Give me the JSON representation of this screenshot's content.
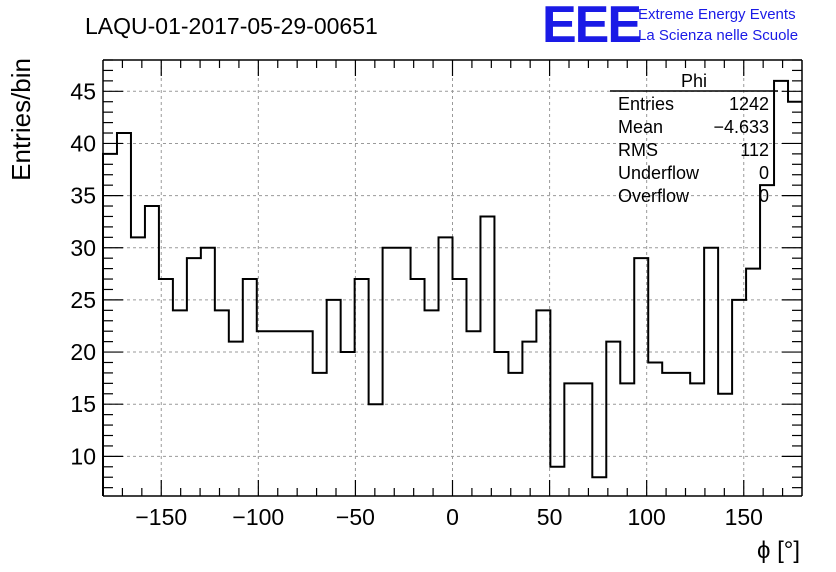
{
  "chart_data": {
    "type": "histogram",
    "title": "LAQU-01-2017-05-29-00651",
    "xlabel": "ϕ [°]",
    "ylabel": "Entries/bin",
    "xlim": [
      -180,
      180
    ],
    "ylim": [
      6.2,
      48
    ],
    "grid": true,
    "x_ticks": [
      -150,
      -100,
      -50,
      0,
      50,
      100,
      150
    ],
    "x_tick_labels": [
      "−150",
      "−100",
      "−50",
      "0",
      "50",
      "100",
      "150"
    ],
    "y_ticks": [
      10,
      15,
      20,
      25,
      30,
      35,
      40,
      45
    ],
    "y_tick_labels": [
      "10",
      "15",
      "20",
      "25",
      "30",
      "35",
      "40",
      "45"
    ],
    "bin_edges_start": -180,
    "bin_width": 7.2,
    "counts": [
      39,
      41,
      31,
      34,
      27,
      24,
      29,
      30,
      24,
      21,
      27,
      22,
      22,
      22,
      22,
      18,
      25,
      20,
      27,
      15,
      30,
      30,
      27,
      24,
      31,
      27,
      22,
      33,
      20,
      18,
      21,
      24,
      9,
      17,
      17,
      8,
      21,
      17,
      29,
      19,
      18,
      18,
      17,
      30,
      16,
      25,
      28,
      36,
      46,
      44
    ]
  },
  "stats_box": {
    "name": "Phi",
    "rows": [
      {
        "label": "Entries",
        "value": "1242"
      },
      {
        "label": "Mean",
        "value": "−4.633"
      },
      {
        "label": "RMS",
        "value": "112"
      },
      {
        "label": "Underflow",
        "value": "0"
      },
      {
        "label": "Overflow",
        "value": "0"
      }
    ]
  },
  "logo": {
    "text": "EEE",
    "line1": "Extreme Energy Events",
    "line2": "La Scienza nelle Scuole",
    "color": "#1a1ae6"
  },
  "colors": {
    "hist_line": "#000000",
    "grid": "#9a9a9a",
    "axis": "#000000"
  }
}
